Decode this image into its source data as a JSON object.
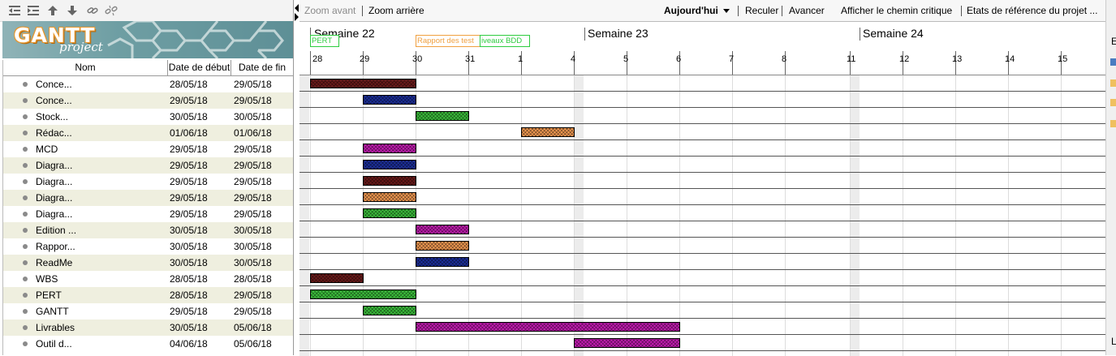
{
  "toolbar": {
    "icons": [
      "outdent-icon",
      "indent-icon",
      "move-up-icon",
      "move-down-icon",
      "link-icon",
      "unlink-icon"
    ]
  },
  "logo": {
    "word1": "GANTT",
    "word2": "project"
  },
  "table": {
    "headers": {
      "name": "Nom",
      "start": "Date de début",
      "end": "Date de fin"
    },
    "rows": [
      {
        "name": "Conce...",
        "start": "28/05/18",
        "end": "29/05/18"
      },
      {
        "name": "Conce...",
        "start": "29/05/18",
        "end": "29/05/18"
      },
      {
        "name": "Stock...",
        "start": "30/05/18",
        "end": "30/05/18"
      },
      {
        "name": "Rédac...",
        "start": "01/06/18",
        "end": "01/06/18"
      },
      {
        "name": "MCD",
        "start": "29/05/18",
        "end": "29/05/18"
      },
      {
        "name": "Diagra...",
        "start": "29/05/18",
        "end": "29/05/18"
      },
      {
        "name": "Diagra...",
        "start": "29/05/18",
        "end": "29/05/18"
      },
      {
        "name": "Diagra...",
        "start": "29/05/18",
        "end": "29/05/18"
      },
      {
        "name": "Diagra...",
        "start": "29/05/18",
        "end": "29/05/18"
      },
      {
        "name": "Edition ...",
        "start": "30/05/18",
        "end": "30/05/18"
      },
      {
        "name": "Rappor...",
        "start": "30/05/18",
        "end": "30/05/18"
      },
      {
        "name": "ReadMe",
        "start": "30/05/18",
        "end": "30/05/18"
      },
      {
        "name": "WBS",
        "start": "28/05/18",
        "end": "28/05/18"
      },
      {
        "name": "PERT",
        "start": "28/05/18",
        "end": "29/05/18"
      },
      {
        "name": "GANTT",
        "start": "29/05/18",
        "end": "29/05/18"
      },
      {
        "name": "Livrables",
        "start": "30/05/18",
        "end": "05/06/18"
      },
      {
        "name": "Outil d...",
        "start": "04/06/18",
        "end": "05/06/18"
      }
    ]
  },
  "chart_toolbar": {
    "zoom_in": "Zoom avant",
    "zoom_out": "Zoom arrière",
    "today": "Aujourd'hui",
    "back": "Reculer",
    "forward": "Avancer",
    "critical_path": "Afficher le chemin critique",
    "baselines": "Etats de référence du projet ..."
  },
  "timeline": {
    "weeks": [
      "Semaine 22",
      "Semaine 23",
      "Semaine 24"
    ],
    "days": [
      "28",
      "29",
      "30",
      "31",
      "1",
      "4",
      "5",
      "6",
      "7",
      "8",
      "11",
      "12",
      "13",
      "14",
      "15"
    ],
    "milestones": [
      {
        "label": "PERT",
        "color": "#2ecc40"
      },
      {
        "label": "Rapport des test",
        "color": "#f0a040"
      },
      {
        "label": "iveaux BDD",
        "color": "#2ecc40"
      }
    ]
  },
  "colors": {
    "darkred": "#6b1a1a",
    "blue": "#1c2f9c",
    "green": "#3bbf3b",
    "orange": "#f29a52",
    "magenta": "#c21bb0"
  },
  "chart_data": {
    "type": "gantt",
    "tasks": [
      {
        "start": "28/05/18",
        "end": "29/05/18",
        "color": "darkred"
      },
      {
        "start": "29/05/18",
        "end": "29/05/18",
        "color": "blue"
      },
      {
        "start": "30/05/18",
        "end": "30/05/18",
        "color": "green"
      },
      {
        "start": "01/06/18",
        "end": "01/06/18",
        "color": "orange"
      },
      {
        "start": "29/05/18",
        "end": "29/05/18",
        "color": "magenta"
      },
      {
        "start": "29/05/18",
        "end": "29/05/18",
        "color": "blue"
      },
      {
        "start": "29/05/18",
        "end": "29/05/18",
        "color": "darkred"
      },
      {
        "start": "29/05/18",
        "end": "29/05/18",
        "color": "orange"
      },
      {
        "start": "29/05/18",
        "end": "29/05/18",
        "color": "green"
      },
      {
        "start": "30/05/18",
        "end": "30/05/18",
        "color": "magenta"
      },
      {
        "start": "30/05/18",
        "end": "30/05/18",
        "color": "orange"
      },
      {
        "start": "30/05/18",
        "end": "30/05/18",
        "color": "blue"
      },
      {
        "start": "28/05/18",
        "end": "28/05/18",
        "color": "darkred"
      },
      {
        "start": "28/05/18",
        "end": "29/05/18",
        "color": "green"
      },
      {
        "start": "29/05/18",
        "end": "29/05/18",
        "color": "green"
      },
      {
        "start": "30/05/18",
        "end": "05/06/18",
        "color": "magenta"
      },
      {
        "start": "04/06/18",
        "end": "05/06/18",
        "color": "magenta"
      }
    ]
  },
  "right_strip": {
    "top_letter": "E",
    "bottom_letter": "L"
  }
}
